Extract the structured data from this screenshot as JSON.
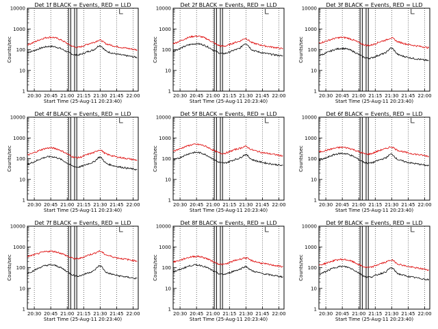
{
  "chart_data": [
    {
      "type": "line",
      "title": "Det 1f BLACK = Events, RED = LLD",
      "xlabel": "Start Time (25-Aug-11 20:23:40)",
      "ylabel": "Counts/sec",
      "x_ticks": [
        "20:30",
        "20:45",
        "21:00",
        "21:15",
        "21:30",
        "21:45",
        "22:00"
      ],
      "y_ticks": [
        "1",
        "10",
        "100",
        "1000",
        "10000"
      ],
      "yscale": "log",
      "ylim": [
        1,
        10000
      ],
      "series": [
        {
          "color": "#000000",
          "base": 65,
          "bump": 80,
          "flare": 2.0
        },
        {
          "color": "#dd0000",
          "base": 150,
          "bump": 250,
          "flare": 1.5
        }
      ]
    },
    {
      "type": "line",
      "title": "Det 2f BLACK = Events, RED = LLD",
      "xlabel": "Start Time (25-Aug-11 20:23:40)",
      "ylabel": "Counts/sec",
      "x_ticks": [
        "20:30",
        "20:45",
        "21:00",
        "21:15",
        "21:30",
        "21:45",
        "22:00"
      ],
      "y_ticks": [
        "1",
        "10",
        "100",
        "1000",
        "10000"
      ],
      "yscale": "log",
      "ylim": [
        1,
        10000
      ],
      "series": [
        {
          "color": "#000000",
          "base": 75,
          "bump": 120,
          "flare": 2.2
        },
        {
          "color": "#dd0000",
          "base": 170,
          "bump": 280,
          "flare": 1.6
        }
      ]
    },
    {
      "type": "line",
      "title": "Det 3f BLACK = Events, RED = LLD",
      "xlabel": "Start Time (25-Aug-11 20:23:40)",
      "ylabel": "Counts/sec",
      "x_ticks": [
        "20:30",
        "20:45",
        "21:00",
        "21:15",
        "21:30",
        "21:45",
        "22:00"
      ],
      "y_ticks": [
        "1",
        "10",
        "100",
        "1000",
        "10000"
      ],
      "yscale": "log",
      "ylim": [
        1,
        10000
      ],
      "series": [
        {
          "color": "#000000",
          "base": 45,
          "bump": 70,
          "flare": 2.2
        },
        {
          "color": "#dd0000",
          "base": 190,
          "bump": 200,
          "flare": 1.5
        }
      ]
    },
    {
      "type": "line",
      "title": "Det 4f BLACK = Events, RED = LLD",
      "xlabel": "Start Time (25-Aug-11 20:23:40)",
      "ylabel": "Counts/sec",
      "x_ticks": [
        "20:30",
        "20:45",
        "21:00",
        "21:15",
        "21:30",
        "21:45",
        "22:00"
      ],
      "y_ticks": [
        "1",
        "10",
        "100",
        "1000",
        "10000"
      ],
      "yscale": "log",
      "ylim": [
        1,
        10000
      ],
      "series": [
        {
          "color": "#000000",
          "base": 45,
          "bump": 80,
          "flare": 2.2
        },
        {
          "color": "#dd0000",
          "base": 130,
          "bump": 200,
          "flare": 1.6
        }
      ]
    },
    {
      "type": "line",
      "title": "Det 5f BLACK = Events, RED = LLD",
      "xlabel": "Start Time (25-Aug-11 20:23:40)",
      "ylabel": "Counts/sec",
      "x_ticks": [
        "20:30",
        "20:45",
        "21:00",
        "21:15",
        "21:30",
        "21:45",
        "22:00"
      ],
      "y_ticks": [
        "1",
        "10",
        "100",
        "1000",
        "10000"
      ],
      "yscale": "log",
      "ylim": [
        1,
        10000
      ],
      "series": [
        {
          "color": "#000000",
          "base": 70,
          "bump": 130,
          "flare": 1.8
        },
        {
          "color": "#dd0000",
          "base": 210,
          "bump": 280,
          "flare": 1.4
        }
      ]
    },
    {
      "type": "line",
      "title": "Det 6f BLACK = Events, RED = LLD",
      "xlabel": "Start Time (25-Aug-11 20:23:40)",
      "ylabel": "Counts/sec",
      "x_ticks": [
        "20:30",
        "20:45",
        "21:00",
        "21:15",
        "21:30",
        "21:45",
        "22:00"
      ],
      "y_ticks": [
        "1",
        "10",
        "100",
        "1000",
        "10000"
      ],
      "yscale": "log",
      "ylim": [
        1,
        10000
      ],
      "series": [
        {
          "color": "#000000",
          "base": 70,
          "bump": 110,
          "flare": 1.9
        },
        {
          "color": "#dd0000",
          "base": 200,
          "bump": 150,
          "flare": 1.4
        }
      ]
    },
    {
      "type": "line",
      "title": "Det 7f BLACK = Events, RED = LLD",
      "xlabel": "Start Time (25-Aug-11 20:23:40)",
      "ylabel": "Counts/sec",
      "x_ticks": [
        "20:30",
        "20:45",
        "21:00",
        "21:15",
        "21:30",
        "21:45",
        "22:00"
      ],
      "y_ticks": [
        "1",
        "10",
        "100",
        "1000",
        "10000"
      ],
      "yscale": "log",
      "ylim": [
        1,
        10000
      ],
      "series": [
        {
          "color": "#000000",
          "base": 45,
          "bump": 90,
          "flare": 2.3
        },
        {
          "color": "#dd0000",
          "base": 320,
          "bump": 300,
          "flare": 1.5
        }
      ]
    },
    {
      "type": "line",
      "title": "Det 8f BLACK = Events, RED = LLD",
      "xlabel": "Start Time (25-Aug-11 20:23:40)",
      "ylabel": "Counts/sec",
      "x_ticks": [
        "20:30",
        "20:45",
        "21:00",
        "21:15",
        "21:30",
        "21:45",
        "22:00"
      ],
      "y_ticks": [
        "1",
        "10",
        "100",
        "1000",
        "10000"
      ],
      "yscale": "log",
      "ylim": [
        1,
        10000
      ],
      "series": [
        {
          "color": "#000000",
          "base": 55,
          "bump": 80,
          "flare": 1.6
        },
        {
          "color": "#dd0000",
          "base": 170,
          "bump": 180,
          "flare": 1.3
        }
      ]
    },
    {
      "type": "line",
      "title": "Det 9f BLACK = Events, RED = LLD",
      "xlabel": "Start Time (25-Aug-11 20:23:40)",
      "ylabel": "Counts/sec",
      "x_ticks": [
        "20:30",
        "20:45",
        "21:00",
        "21:15",
        "21:30",
        "21:45",
        "22:00"
      ],
      "y_ticks": [
        "1",
        "10",
        "100",
        "1000",
        "10000"
      ],
      "yscale": "log",
      "ylim": [
        1,
        10000
      ],
      "series": [
        {
          "color": "#000000",
          "base": 40,
          "bump": 75,
          "flare": 2.0
        },
        {
          "color": "#dd0000",
          "base": 120,
          "bump": 130,
          "flare": 1.5
        }
      ]
    }
  ]
}
